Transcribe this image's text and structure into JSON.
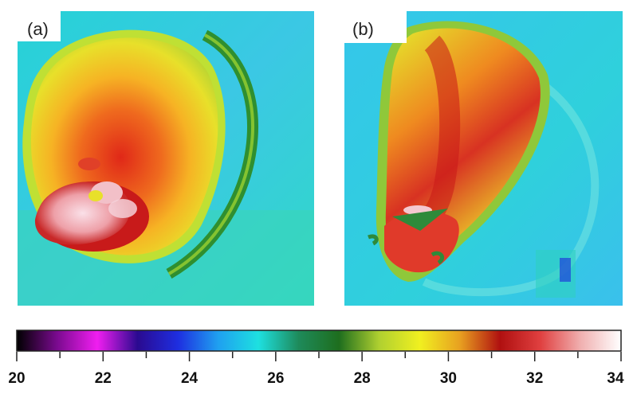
{
  "panels": [
    {
      "label": "(a)"
    },
    {
      "label": "(b)"
    }
  ],
  "colorbar": {
    "min": 20,
    "max": 34,
    "tick_labels": [
      "20",
      "22",
      "24",
      "26",
      "28",
      "30",
      "32",
      "34"
    ],
    "colors": [
      "#000000",
      "#7a0a8f",
      "#f01ef0",
      "#2a0a90",
      "#1e2ee0",
      "#1fa0f0",
      "#1ee0e0",
      "#1e8a5a",
      "#1e6e1e",
      "#b0d030",
      "#f0f020",
      "#e8a020",
      "#b01010",
      "#e04040",
      "#f0b0b0",
      "#ffffff"
    ]
  },
  "thermal_palette": {
    "background": "#33c6e6",
    "cool": "#2ad3d0",
    "green": "#2f9a3a",
    "yellow": "#e6e62a",
    "orange": "#f0a020",
    "red": "#d83020",
    "hot": "#f4c8d0"
  }
}
